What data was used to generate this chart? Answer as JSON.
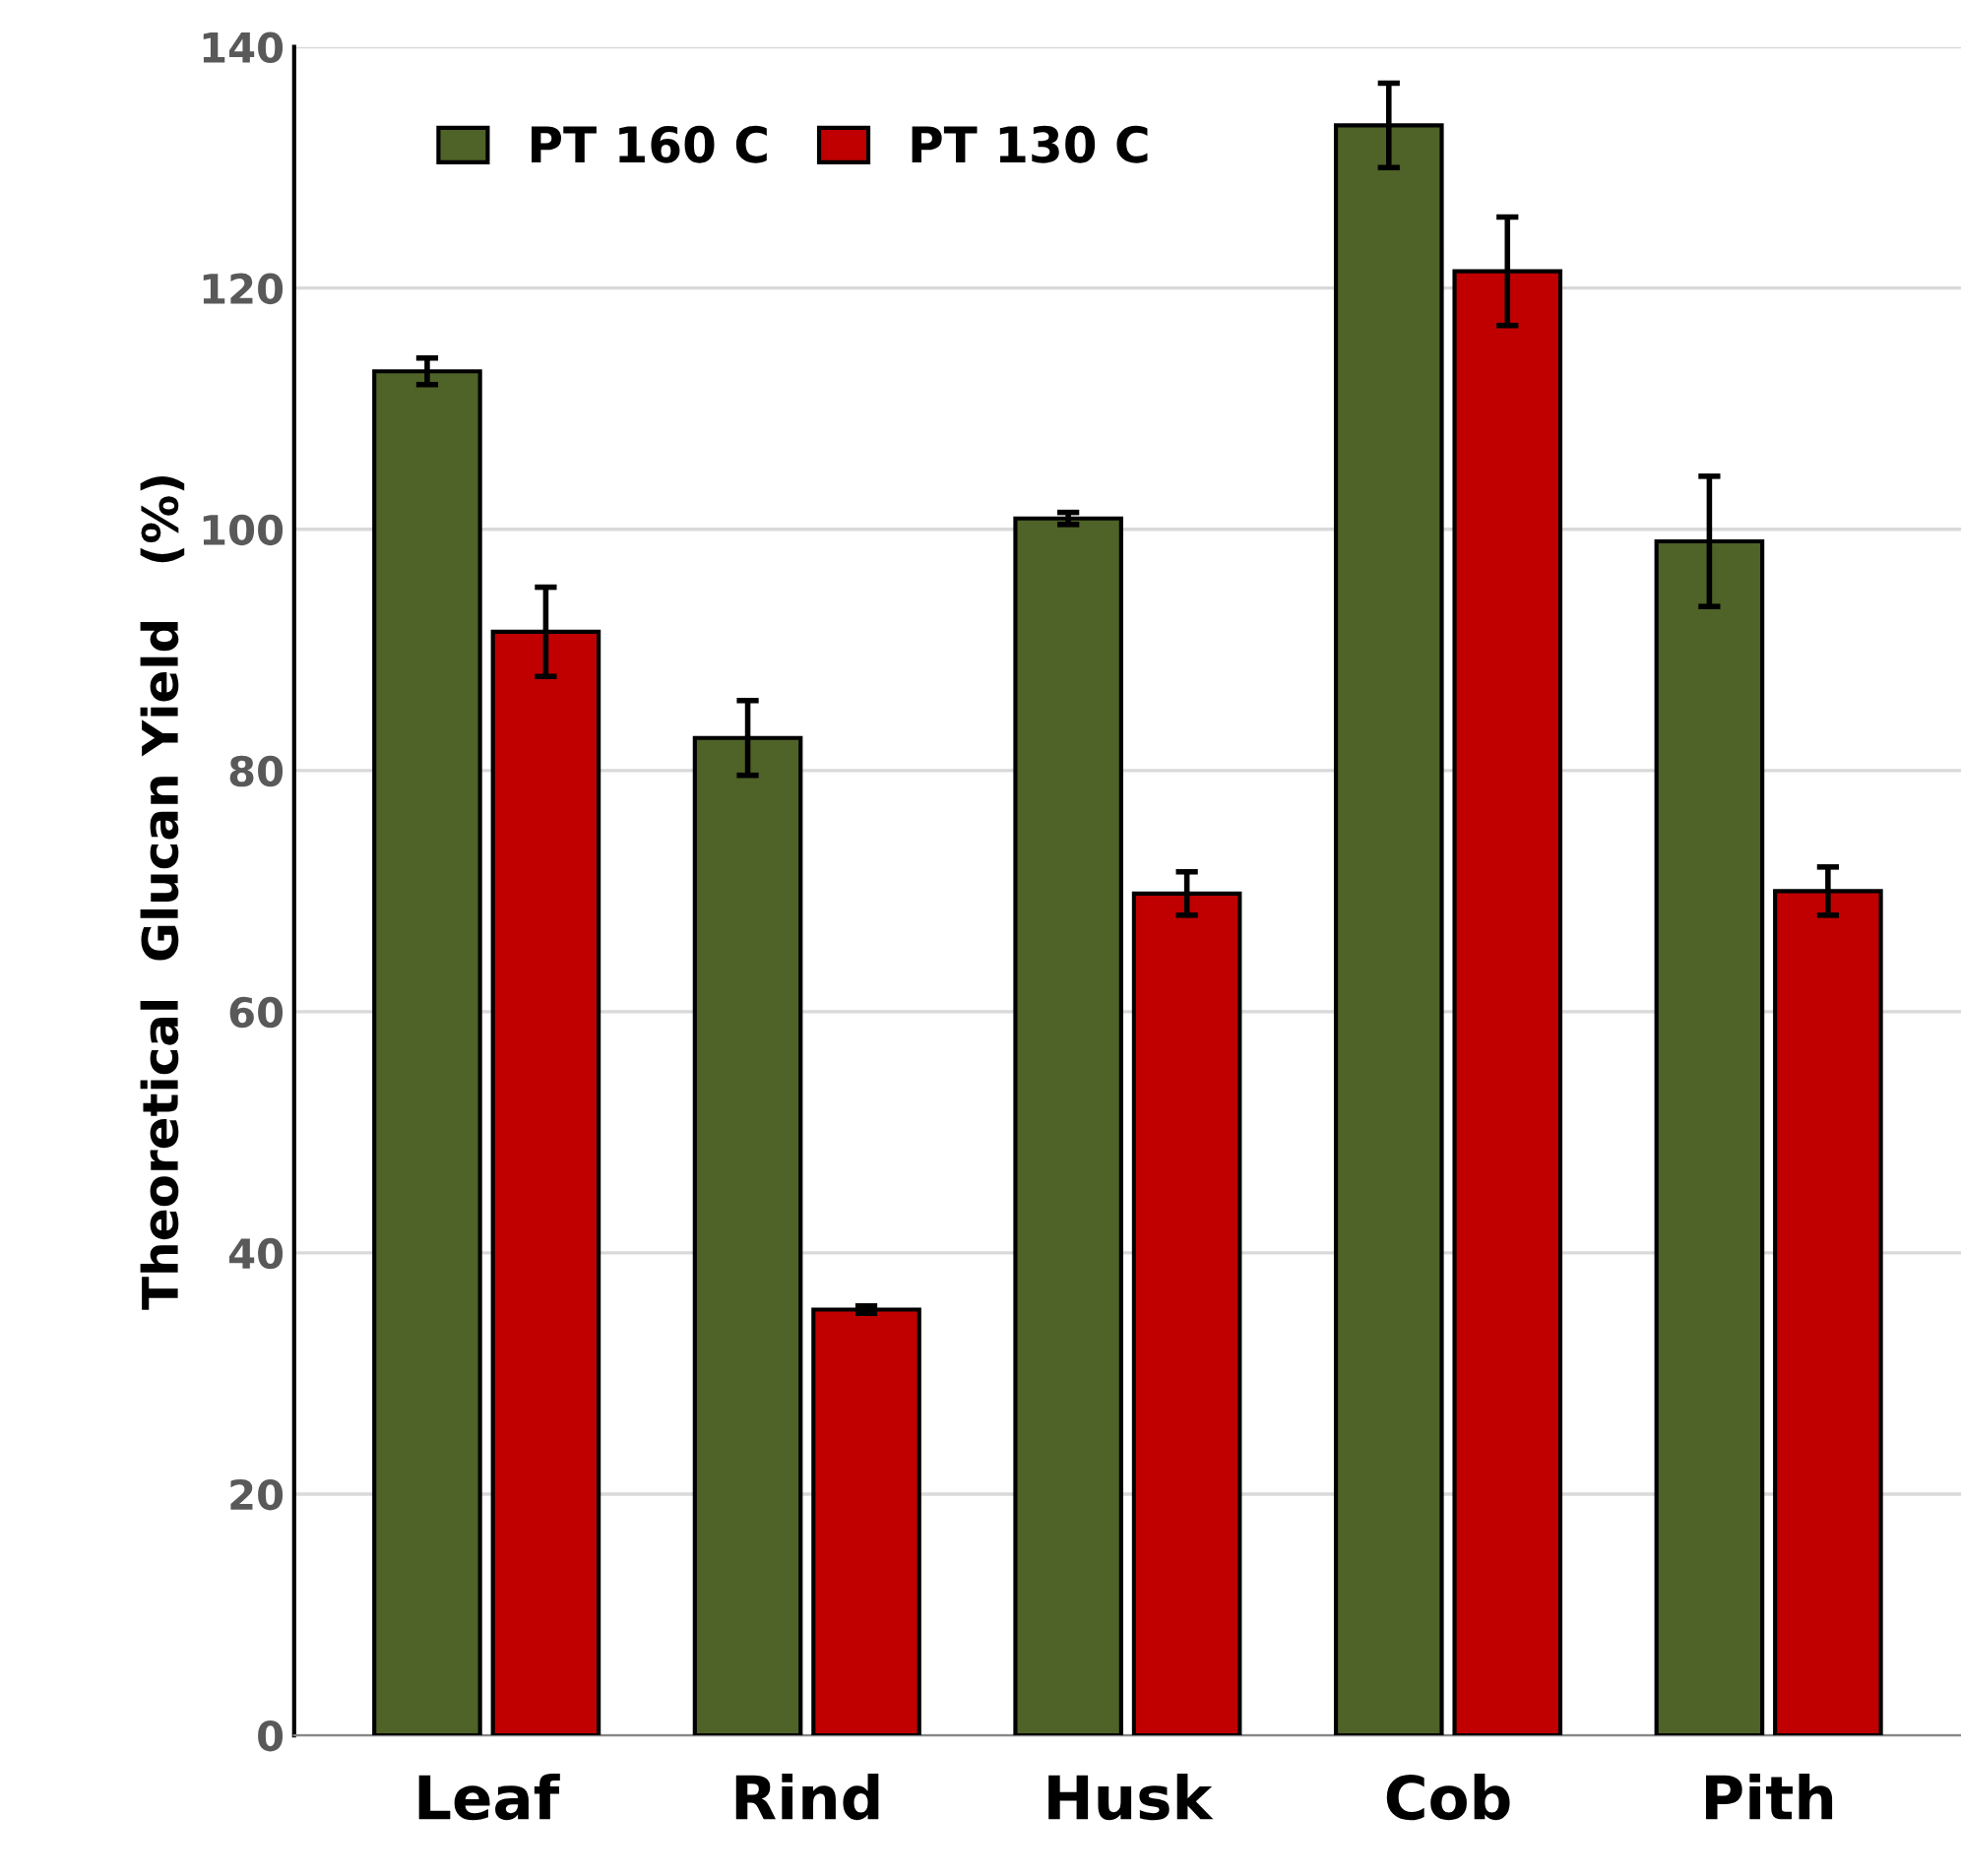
{
  "chart_data": {
    "type": "bar",
    "ylabel": "Theoretical  Glucan Yield   (%)",
    "categories": [
      "Leaf",
      "Rind",
      "Husk",
      "Cob",
      "Pith"
    ],
    "series": [
      {
        "name": "PT 160 C",
        "color": "#4f6228",
        "values": [
          113.1,
          82.7,
          100.9,
          133.5,
          99.0
        ],
        "errors": [
          1.1,
          3.1,
          0.5,
          3.5,
          5.4
        ]
      },
      {
        "name": "PT 130 C",
        "color": "#c00000",
        "values": [
          91.5,
          35.3,
          69.8,
          121.4,
          70.0
        ],
        "errors": [
          3.7,
          0.3,
          1.8,
          4.5,
          2.0
        ]
      }
    ],
    "ylim": [
      0,
      140
    ],
    "yticks": [
      0,
      20,
      40,
      60,
      80,
      100,
      120,
      140
    ],
    "grid": "y",
    "legend": "top left"
  }
}
